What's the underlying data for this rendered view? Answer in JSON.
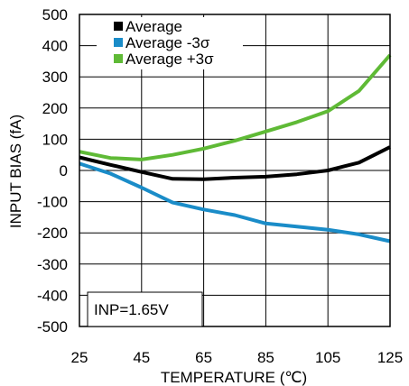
{
  "chart_data": {
    "type": "line",
    "xlabel": "TEMPERATURE (℃)",
    "ylabel": "INPUT BIAS (fA)",
    "xlim": [
      25,
      125
    ],
    "ylim": [
      -500,
      500
    ],
    "x_ticks": [
      25,
      45,
      65,
      85,
      105,
      125
    ],
    "y_ticks": [
      500,
      400,
      300,
      200,
      100,
      0,
      -100,
      -200,
      -300,
      -400,
      -500
    ],
    "grid": true,
    "legend_position": "top-left",
    "annotation": "INP=1.65V",
    "x": [
      25,
      35,
      45,
      55,
      65,
      75,
      85,
      95,
      105,
      115,
      125
    ],
    "series": [
      {
        "name": "Average",
        "color": "#000000",
        "values": [
          42,
          18,
          -5,
          -27,
          -28,
          -23,
          -20,
          -12,
          0,
          25,
          75
        ]
      },
      {
        "name": "Average -3σ",
        "color": "#1a8cc8",
        "values": [
          22,
          -10,
          -55,
          -103,
          -125,
          -143,
          -170,
          -180,
          -190,
          -205,
          -227
        ]
      },
      {
        "name": "Average +3σ",
        "color": "#5fba36",
        "values": [
          60,
          40,
          35,
          50,
          70,
          95,
          125,
          155,
          190,
          255,
          370
        ]
      }
    ]
  }
}
